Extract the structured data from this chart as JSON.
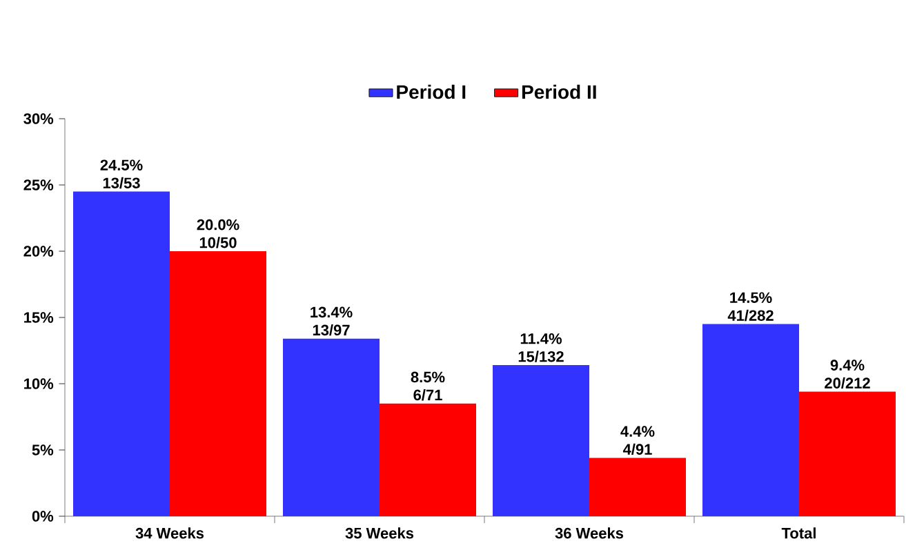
{
  "chart_data": {
    "type": "bar",
    "categories": [
      "34 Weeks",
      "35 Weeks",
      "36 Weeks",
      "Total"
    ],
    "series": [
      {
        "name": "Period I",
        "color": "#3333ff",
        "values": [
          24.5,
          13.4,
          11.4,
          14.5
        ],
        "value_labels": [
          "24.5% 13/53",
          "13.4% 13/97",
          "11.4% 15/132",
          "14.5% 41/282"
        ]
      },
      {
        "name": "Period II",
        "color": "#ff0000",
        "values": [
          20.0,
          8.5,
          4.4,
          9.4
        ],
        "value_labels": [
          "20.0% 10/50",
          "8.5% 6/71",
          "4.4% 4/91",
          "9.4% 20/212"
        ]
      }
    ],
    "ylim": [
      0,
      30
    ],
    "yticks": [
      {
        "value": 0,
        "label": "0%"
      },
      {
        "value": 5,
        "label": "5%"
      },
      {
        "value": 10,
        "label": "10%"
      },
      {
        "value": 15,
        "label": "15%"
      },
      {
        "value": 20,
        "label": "20%"
      },
      {
        "value": 25,
        "label": "25%"
      },
      {
        "value": 30,
        "label": "30%"
      }
    ],
    "grid": false,
    "legend": "top"
  }
}
